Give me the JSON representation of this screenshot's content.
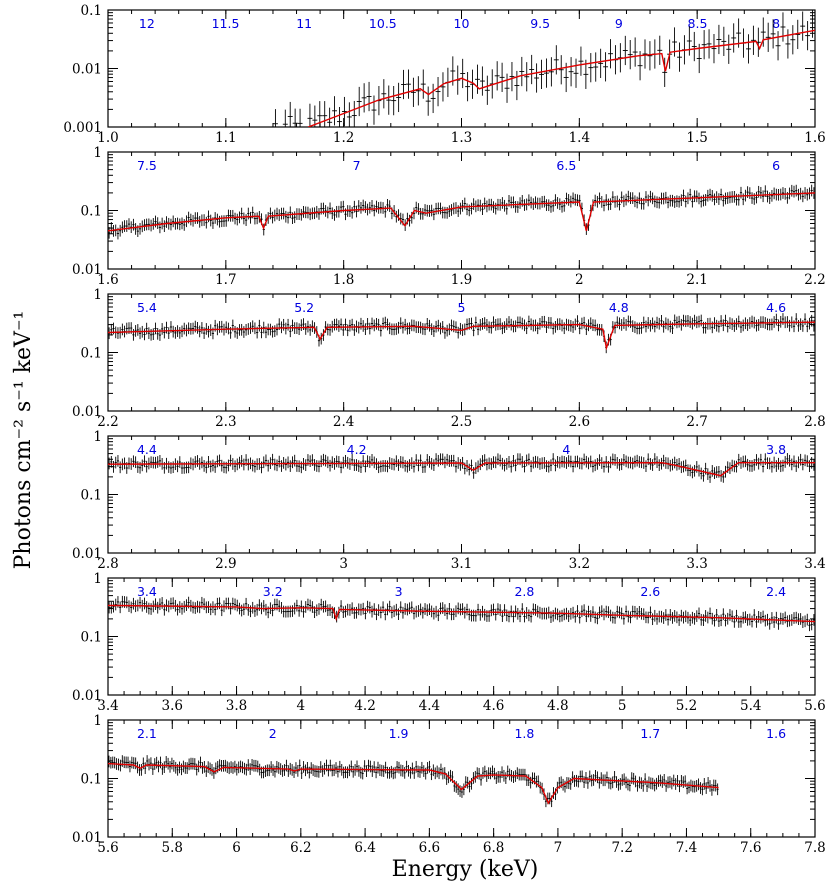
{
  "chart_data": {
    "type": "line",
    "ylabel": "Photons cm⁻² s⁻¹ keV⁻¹",
    "xlabel": "Energy (keV)",
    "y_scale": "log",
    "colors": {
      "data": "#000000",
      "model": "#e00000",
      "wavelength_labels": "#0000e0"
    },
    "panels": [
      {
        "xlim": [
          1.0,
          1.6
        ],
        "ylim": [
          0.001,
          0.1
        ],
        "xticks": [
          1.0,
          1.1,
          1.2,
          1.3,
          1.4,
          1.5,
          1.6
        ],
        "xtick_labels": [
          "1.0",
          "1.1",
          "1.2",
          "1.3",
          "1.4",
          "1.5",
          "1.6"
        ],
        "yticks": [
          0.001,
          0.01,
          0.1
        ],
        "ytick_labels": [
          "0.001",
          "0.01",
          "0.1"
        ],
        "wavelength_labels": [
          "12",
          "11.5",
          "11",
          "10.5",
          "10",
          "9.5",
          "9",
          "8.5",
          "8"
        ],
        "model": [
          [
            1.17,
            0.001
          ],
          [
            1.2,
            0.0017
          ],
          [
            1.23,
            0.0029
          ],
          [
            1.265,
            0.0045
          ],
          [
            1.272,
            0.0036
          ],
          [
            1.285,
            0.0055
          ],
          [
            1.3,
            0.0068
          ],
          [
            1.31,
            0.0056
          ],
          [
            1.315,
            0.0045
          ],
          [
            1.35,
            0.0075
          ],
          [
            1.4,
            0.0115
          ],
          [
            1.45,
            0.0165
          ],
          [
            1.47,
            0.018
          ],
          [
            1.473,
            0.009
          ],
          [
            1.477,
            0.019
          ],
          [
            1.5,
            0.022
          ],
          [
            1.55,
            0.029
          ],
          [
            1.553,
            0.022
          ],
          [
            1.556,
            0.031
          ],
          [
            1.6,
            0.045
          ]
        ],
        "absorption_lines": [
          1.272,
          1.315,
          1.473,
          1.553
        ]
      },
      {
        "xlim": [
          1.6,
          2.2
        ],
        "ylim": [
          0.01,
          1
        ],
        "xticks": [
          1.6,
          1.7,
          1.8,
          1.9,
          2.0,
          2.1,
          2.2
        ],
        "xtick_labels": [
          "1.6",
          "1.7",
          "1.8",
          "1.9",
          "2",
          "2.1",
          "2.2"
        ],
        "yticks": [
          0.01,
          0.1,
          1
        ],
        "ytick_labels": [
          "0.01",
          "0.1",
          "1"
        ],
        "wavelength_labels": [
          "7.5",
          "7",
          "6.5",
          "6"
        ],
        "model": [
          [
            1.6,
            0.045
          ],
          [
            1.65,
            0.06
          ],
          [
            1.7,
            0.075
          ],
          [
            1.728,
            0.08
          ],
          [
            1.732,
            0.05
          ],
          [
            1.736,
            0.08
          ],
          [
            1.8,
            0.1
          ],
          [
            1.84,
            0.11
          ],
          [
            1.852,
            0.055
          ],
          [
            1.86,
            0.1
          ],
          [
            1.87,
            0.09
          ],
          [
            1.9,
            0.115
          ],
          [
            2.0,
            0.14
          ],
          [
            2.006,
            0.045
          ],
          [
            2.012,
            0.14
          ],
          [
            2.1,
            0.165
          ],
          [
            2.2,
            0.2
          ]
        ],
        "absorption_lines": [
          1.732,
          1.852,
          2.006
        ]
      },
      {
        "xlim": [
          2.2,
          2.8
        ],
        "ylim": [
          0.01,
          1
        ],
        "xticks": [
          2.2,
          2.3,
          2.4,
          2.5,
          2.6,
          2.7,
          2.8
        ],
        "xtick_labels": [
          "2.2",
          "2.3",
          "2.4",
          "2.5",
          "2.6",
          "2.7",
          "2.8"
        ],
        "yticks": [
          0.01,
          0.1,
          1
        ],
        "ytick_labels": [
          "0.01",
          "0.1",
          "1"
        ],
        "wavelength_labels": [
          "5.4",
          "5.2",
          "5",
          "4.8",
          "4.6"
        ],
        "model": [
          [
            2.2,
            0.22
          ],
          [
            2.3,
            0.25
          ],
          [
            2.375,
            0.27
          ],
          [
            2.38,
            0.17
          ],
          [
            2.386,
            0.27
          ],
          [
            2.46,
            0.28
          ],
          [
            2.5,
            0.24
          ],
          [
            2.51,
            0.28
          ],
          [
            2.6,
            0.3
          ],
          [
            2.62,
            0.25
          ],
          [
            2.623,
            0.12
          ],
          [
            2.63,
            0.29
          ],
          [
            2.7,
            0.31
          ],
          [
            2.8,
            0.33
          ]
        ],
        "absorption_lines": [
          2.38,
          2.506,
          2.623
        ]
      },
      {
        "xlim": [
          2.8,
          3.4
        ],
        "ylim": [
          0.01,
          1
        ],
        "xticks": [
          2.8,
          2.9,
          3.0,
          3.1,
          3.2,
          3.3,
          3.4
        ],
        "xtick_labels": [
          "2.8",
          "2.9",
          "3",
          "3.1",
          "3.2",
          "3.3",
          "3.4"
        ],
        "yticks": [
          0.01,
          0.1,
          1
        ],
        "ytick_labels": [
          "0.01",
          "0.1",
          "1"
        ],
        "wavelength_labels": [
          "4.4",
          "4.2",
          "4",
          "3.8"
        ],
        "model": [
          [
            2.8,
            0.33
          ],
          [
            3.0,
            0.34
          ],
          [
            3.1,
            0.345
          ],
          [
            3.11,
            0.26
          ],
          [
            3.12,
            0.345
          ],
          [
            3.27,
            0.35
          ],
          [
            3.28,
            0.32
          ],
          [
            3.32,
            0.21
          ],
          [
            3.335,
            0.35
          ],
          [
            3.4,
            0.35
          ]
        ],
        "absorption_lines": [
          3.11,
          3.28,
          3.32
        ]
      },
      {
        "xlim": [
          3.4,
          5.6
        ],
        "ylim": [
          0.01,
          1
        ],
        "xticks": [
          3.4,
          3.6,
          3.8,
          4.0,
          4.2,
          4.4,
          4.6,
          4.8,
          5.0,
          5.2,
          5.4,
          5.6
        ],
        "xtick_labels": [
          "3.4",
          "3.6",
          "3.8",
          "4",
          "4.2",
          "4.4",
          "4.6",
          "4.8",
          "5",
          "5.2",
          "5.4",
          "5.6"
        ],
        "yticks": [
          0.01,
          0.1,
          1
        ],
        "ytick_labels": [
          "0.01",
          "0.1",
          "1"
        ],
        "wavelength_labels": [
          "3.4",
          "3.2",
          "3",
          "2.8",
          "2.6",
          "2.4"
        ],
        "model": [
          [
            3.4,
            0.34
          ],
          [
            3.8,
            0.32
          ],
          [
            3.88,
            0.3
          ],
          [
            4.0,
            0.31
          ],
          [
            4.1,
            0.3
          ],
          [
            4.11,
            0.2
          ],
          [
            4.12,
            0.29
          ],
          [
            4.4,
            0.27
          ],
          [
            4.8,
            0.25
          ],
          [
            5.0,
            0.23
          ],
          [
            5.3,
            0.21
          ],
          [
            5.6,
            0.18
          ]
        ],
        "absorption_lines": [
          3.88,
          4.11
        ]
      },
      {
        "xlim": [
          5.6,
          7.8
        ],
        "ylim": [
          0.01,
          1
        ],
        "xticks": [
          5.6,
          5.8,
          6.0,
          6.2,
          6.4,
          6.6,
          6.8,
          7.0,
          7.2,
          7.4,
          7.6,
          7.8
        ],
        "xtick_labels": [
          "5.6",
          "5.8",
          "6",
          "6.2",
          "6.4",
          "6.6",
          "6.8",
          "7",
          "7.2",
          "7.4",
          "7.6",
          "7.8"
        ],
        "yticks": [
          0.01,
          0.1,
          1
        ],
        "ytick_labels": [
          "0.01",
          "0.1",
          "1"
        ],
        "wavelength_labels": [
          "2.1",
          "2",
          "1.9",
          "1.8",
          "1.7",
          "1.6"
        ],
        "model": [
          [
            5.6,
            0.18
          ],
          [
            5.68,
            0.17
          ],
          [
            5.7,
            0.15
          ],
          [
            5.72,
            0.17
          ],
          [
            5.9,
            0.16
          ],
          [
            5.93,
            0.13
          ],
          [
            5.96,
            0.155
          ],
          [
            6.16,
            0.145
          ],
          [
            6.18,
            0.135
          ],
          [
            6.2,
            0.145
          ],
          [
            6.6,
            0.14
          ],
          [
            6.65,
            0.12
          ],
          [
            6.7,
            0.065
          ],
          [
            6.75,
            0.11
          ],
          [
            6.8,
            0.115
          ],
          [
            6.9,
            0.11
          ],
          [
            6.95,
            0.07
          ],
          [
            6.97,
            0.038
          ],
          [
            7.0,
            0.07
          ],
          [
            7.05,
            0.1
          ],
          [
            7.3,
            0.085
          ],
          [
            7.5,
            0.07
          ]
        ],
        "absorption_lines": [
          5.7,
          5.93,
          6.18,
          6.7,
          6.97
        ],
        "data_end": 7.5
      }
    ]
  }
}
